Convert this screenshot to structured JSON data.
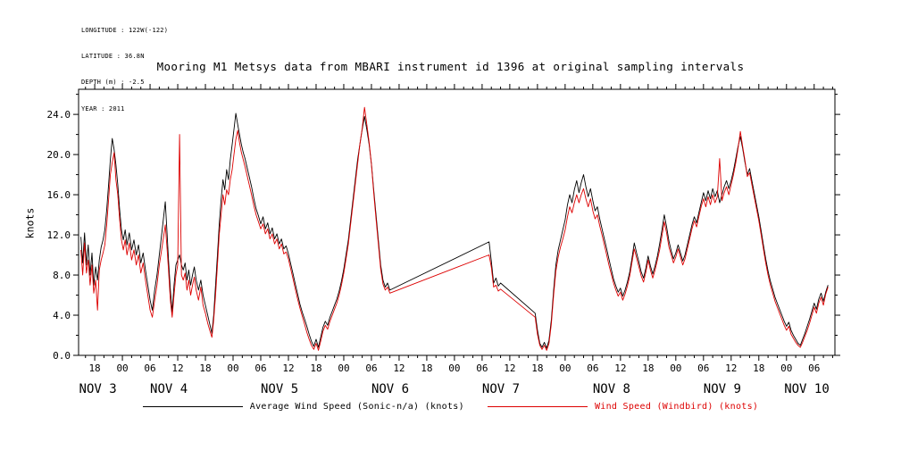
{
  "meta": {
    "lines": [
      "LONGITUDE : 122W(-122)",
      "LATITUDE : 36.8N",
      "DEPTH (m) : -2.5",
      "YEAR : 2011"
    ]
  },
  "chart_data": {
    "type": "line",
    "title": "Mooring M1 Metsys data from MBARI instrument id 1396 at original sampling intervals",
    "ylabel": "knots",
    "grid": false,
    "legend_position": "bottom",
    "x_axis_description": "time, hours since 2011-11-03 00:00; labeled every 6 h with hour-of-day, day labels NOV 3 - NOV 10",
    "xlim": [
      14.5,
      178.5
    ],
    "ylim": [
      0,
      26.5
    ],
    "yticks": [
      {
        "v": 0,
        "label": "0.0"
      },
      {
        "v": 4,
        "label": "4.0"
      },
      {
        "v": 8,
        "label": "8.0"
      },
      {
        "v": 12,
        "label": "12.0"
      },
      {
        "v": 16,
        "label": "16.0"
      },
      {
        "v": 20,
        "label": "20.0"
      },
      {
        "v": 24,
        "label": "24.0"
      }
    ],
    "y_minor_step": 2,
    "xticks": {
      "start_hour": 18,
      "step_hours": 6,
      "labels": [
        "18",
        "00",
        "06",
        "12",
        "18",
        "00",
        "06",
        "12",
        "18",
        "00",
        "06",
        "12",
        "18",
        "00",
        "06",
        "12",
        "18",
        "00",
        "06",
        "12",
        "18",
        "00",
        "06",
        "12",
        "18",
        "00",
        "06"
      ]
    },
    "x_minor_step_hours": 2,
    "day_labels": [
      {
        "label": "NOV 3",
        "t": 14.6
      },
      {
        "label": "NOV 4",
        "t": 30
      },
      {
        "label": "NOV 5",
        "t": 54
      },
      {
        "label": "NOV 6",
        "t": 78
      },
      {
        "label": "NOV 7",
        "t": 102
      },
      {
        "label": "NOV 8",
        "t": 126
      },
      {
        "label": "NOV 9",
        "t": 150
      },
      {
        "label": "NOV 10",
        "t": 167.5
      }
    ],
    "legend": [
      {
        "label": "Average Wind Speed (Sonic-n/a) (knots)",
        "color": "#000000"
      },
      {
        "label": "Wind Speed (Windbird) (knots)",
        "color": "#dd0000"
      }
    ],
    "series": [
      {
        "name": "Average Wind Speed (Sonic-n/a) (knots)",
        "color": "#000000",
        "value_index": 1
      },
      {
        "name": "Wind Speed (Windbird) (knots)",
        "color": "#dd0000",
        "value_index": 2
      }
    ],
    "points": [
      [
        15.0,
        11.8,
        10.5
      ],
      [
        15.4,
        9.2,
        8.0
      ],
      [
        15.8,
        12.2,
        11.2
      ],
      [
        16.2,
        9.0,
        8.2
      ],
      [
        16.6,
        11.0,
        9.5
      ],
      [
        17.0,
        8.0,
        7.0
      ],
      [
        17.4,
        10.2,
        9.0
      ],
      [
        17.8,
        7.0,
        6.2
      ],
      [
        18.2,
        8.8,
        7.5
      ],
      [
        18.6,
        7.5,
        4.5
      ],
      [
        19.0,
        9.5,
        8.5
      ],
      [
        19.4,
        10.8,
        9.5
      ],
      [
        19.8,
        11.5,
        10.2
      ],
      [
        20.2,
        12.5,
        11.0
      ],
      [
        20.6,
        14.5,
        13.0
      ],
      [
        21.0,
        17.0,
        15.5
      ],
      [
        21.4,
        19.5,
        18.0
      ],
      [
        21.8,
        21.6,
        19.2
      ],
      [
        22.2,
        20.5,
        20.2
      ],
      [
        22.6,
        19.0,
        17.5
      ],
      [
        23.0,
        17.0,
        16.0
      ],
      [
        23.4,
        14.5,
        13.5
      ],
      [
        23.8,
        12.5,
        11.5
      ],
      [
        24.2,
        11.5,
        10.5
      ],
      [
        24.6,
        12.5,
        11.5
      ],
      [
        25.0,
        11.0,
        10.0
      ],
      [
        25.5,
        12.2,
        11.2
      ],
      [
        26.0,
        10.5,
        9.5
      ],
      [
        26.5,
        11.5,
        10.5
      ],
      [
        27.0,
        10.0,
        9.0
      ],
      [
        27.5,
        11.0,
        10.0
      ],
      [
        28.0,
        9.2,
        8.2
      ],
      [
        28.5,
        10.2,
        9.2
      ],
      [
        29.0,
        8.5,
        7.5
      ],
      [
        29.5,
        7.0,
        6.0
      ],
      [
        30.0,
        5.5,
        4.5
      ],
      [
        30.5,
        4.5,
        3.8
      ],
      [
        31.0,
        6.5,
        5.5
      ],
      [
        31.5,
        8.0,
        7.0
      ],
      [
        32.0,
        10.0,
        9.0
      ],
      [
        32.5,
        12.0,
        10.5
      ],
      [
        33.0,
        14.0,
        12.0
      ],
      [
        33.3,
        15.3,
        13.0
      ],
      [
        33.7,
        12.0,
        10.5
      ],
      [
        34.0,
        9.5,
        8.5
      ],
      [
        34.4,
        6.5,
        5.5
      ],
      [
        34.8,
        4.3,
        3.8
      ],
      [
        35.2,
        7.0,
        6.0
      ],
      [
        35.6,
        9.0,
        8.0
      ],
      [
        36.0,
        9.5,
        9.0
      ],
      [
        36.4,
        10.0,
        22.0
      ],
      [
        36.8,
        9.0,
        8.0
      ],
      [
        37.2,
        8.5,
        7.5
      ],
      [
        37.6,
        9.2,
        8.2
      ],
      [
        38.0,
        7.5,
        6.5
      ],
      [
        38.4,
        8.5,
        7.5
      ],
      [
        38.8,
        7.0,
        6.0
      ],
      [
        39.2,
        8.0,
        7.0
      ],
      [
        39.6,
        8.8,
        7.8
      ],
      [
        40.0,
        7.5,
        6.5
      ],
      [
        40.5,
        6.5,
        5.5
      ],
      [
        41.0,
        7.5,
        6.8
      ],
      [
        41.5,
        6.0,
        5.0
      ],
      [
        42.0,
        5.0,
        4.2
      ],
      [
        42.5,
        4.0,
        3.2
      ],
      [
        43.0,
        3.0,
        2.4
      ],
      [
        43.4,
        2.2,
        1.8
      ],
      [
        43.8,
        4.0,
        3.5
      ],
      [
        44.2,
        7.0,
        6.0
      ],
      [
        44.6,
        10.0,
        9.0
      ],
      [
        45.0,
        13.0,
        12.0
      ],
      [
        45.4,
        15.5,
        14.0
      ],
      [
        45.8,
        17.5,
        16.0
      ],
      [
        46.2,
        16.5,
        15.0
      ],
      [
        46.6,
        18.5,
        16.5
      ],
      [
        47.0,
        17.5,
        16.0
      ],
      [
        47.4,
        19.5,
        17.5
      ],
      [
        47.8,
        21.0,
        18.5
      ],
      [
        48.2,
        22.5,
        20.0
      ],
      [
        48.6,
        24.1,
        21.5
      ],
      [
        49.0,
        23.0,
        22.4
      ],
      [
        49.4,
        22.0,
        21.2
      ],
      [
        49.8,
        21.0,
        20.2
      ],
      [
        50.2,
        20.2,
        19.5
      ],
      [
        50.6,
        19.6,
        18.8
      ],
      [
        51.0,
        18.8,
        18.0
      ],
      [
        51.5,
        17.8,
        17.0
      ],
      [
        52.0,
        16.8,
        16.0
      ],
      [
        52.5,
        15.6,
        14.9
      ],
      [
        53.0,
        14.6,
        14.0
      ],
      [
        53.5,
        13.9,
        13.3
      ],
      [
        54.0,
        13.1,
        12.6
      ],
      [
        54.5,
        13.8,
        13.1
      ],
      [
        55.0,
        12.6,
        12.1
      ],
      [
        55.5,
        13.2,
        12.6
      ],
      [
        56.0,
        12.1,
        11.6
      ],
      [
        56.5,
        12.7,
        12.1
      ],
      [
        57.0,
        11.6,
        11.1
      ],
      [
        57.5,
        12.1,
        11.6
      ],
      [
        58.0,
        11.1,
        10.6
      ],
      [
        58.5,
        11.6,
        11.1
      ],
      [
        59.0,
        10.6,
        10.1
      ],
      [
        59.5,
        10.9,
        10.3
      ],
      [
        60.0,
        10.1,
        9.6
      ],
      [
        60.5,
        9.1,
        8.6
      ],
      [
        61.0,
        8.1,
        7.6
      ],
      [
        61.5,
        7.1,
        6.6
      ],
      [
        62.0,
        6.1,
        5.6
      ],
      [
        62.5,
        5.1,
        4.7
      ],
      [
        63.0,
        4.3,
        3.9
      ],
      [
        63.5,
        3.6,
        3.1
      ],
      [
        64.0,
        2.9,
        2.3
      ],
      [
        64.5,
        2.1,
        1.6
      ],
      [
        65.0,
        1.4,
        1.0
      ],
      [
        65.5,
        0.9,
        0.6
      ],
      [
        66.0,
        1.6,
        1.2
      ],
      [
        66.5,
        0.8,
        0.5
      ],
      [
        67.0,
        1.8,
        1.4
      ],
      [
        67.5,
        2.8,
        2.4
      ],
      [
        68.0,
        3.4,
        3.0
      ],
      [
        68.5,
        3.0,
        2.6
      ],
      [
        69.0,
        3.8,
        3.4
      ],
      [
        69.5,
        4.4,
        4.0
      ],
      [
        70.0,
        5.0,
        4.6
      ],
      [
        70.5,
        5.6,
        5.2
      ],
      [
        71.0,
        6.4,
        6.0
      ],
      [
        71.5,
        7.4,
        7.0
      ],
      [
        72.0,
        8.6,
        8.2
      ],
      [
        72.5,
        10.0,
        9.6
      ],
      [
        73.0,
        11.5,
        11.1
      ],
      [
        73.5,
        13.5,
        13.1
      ],
      [
        74.0,
        15.5,
        15.1
      ],
      [
        74.5,
        17.5,
        17.1
      ],
      [
        75.0,
        19.5,
        19.1
      ],
      [
        75.5,
        21.0,
        21.0
      ],
      [
        76.0,
        22.5,
        22.6
      ],
      [
        76.5,
        23.8,
        24.7
      ],
      [
        77.0,
        22.5,
        23.0
      ],
      [
        77.5,
        21.0,
        21.2
      ],
      [
        78.0,
        19.0,
        19.0
      ],
      [
        78.5,
        16.5,
        16.2
      ],
      [
        79.0,
        14.0,
        13.6
      ],
      [
        79.5,
        11.5,
        11.1
      ],
      [
        80.0,
        9.0,
        8.6
      ],
      [
        80.5,
        7.5,
        7.1
      ],
      [
        81.0,
        6.8,
        6.5
      ],
      [
        81.5,
        7.2,
        6.8
      ],
      [
        82.0,
        6.5,
        6.2
      ],
      [
        103.5,
        11.3,
        10.0
      ],
      [
        104.0,
        9.4,
        8.8
      ],
      [
        104.5,
        7.2,
        6.8
      ],
      [
        105.0,
        7.7,
        7.0
      ],
      [
        105.5,
        6.9,
        6.4
      ],
      [
        106.0,
        7.2,
        6.6
      ],
      [
        113.5,
        4.2,
        3.8
      ],
      [
        114.0,
        2.5,
        2.1
      ],
      [
        114.5,
        1.2,
        1.0
      ],
      [
        115.0,
        0.8,
        0.6
      ],
      [
        115.5,
        1.3,
        1.0
      ],
      [
        116.0,
        0.7,
        0.5
      ],
      [
        116.5,
        1.5,
        1.2
      ],
      [
        117.0,
        3.5,
        3.1
      ],
      [
        117.5,
        6.5,
        6.0
      ],
      [
        118.0,
        9.0,
        8.4
      ],
      [
        118.5,
        10.5,
        9.8
      ],
      [
        119.0,
        11.5,
        10.8
      ],
      [
        119.5,
        12.5,
        11.6
      ],
      [
        120.0,
        13.5,
        12.5
      ],
      [
        120.5,
        15.0,
        13.8
      ],
      [
        121.0,
        16.0,
        14.8
      ],
      [
        121.5,
        15.2,
        14.2
      ],
      [
        122.0,
        16.5,
        15.2
      ],
      [
        122.5,
        17.4,
        16.0
      ],
      [
        123.0,
        16.2,
        15.2
      ],
      [
        123.5,
        17.2,
        16.0
      ],
      [
        124.0,
        18.0,
        16.6
      ],
      [
        124.5,
        16.8,
        15.6
      ],
      [
        125.0,
        15.8,
        14.8
      ],
      [
        125.5,
        16.6,
        15.6
      ],
      [
        126.0,
        15.4,
        14.4
      ],
      [
        126.5,
        14.4,
        13.6
      ],
      [
        127.0,
        14.8,
        14.0
      ],
      [
        127.5,
        13.6,
        12.9
      ],
      [
        128.0,
        12.6,
        12.0
      ],
      [
        128.5,
        11.6,
        11.0
      ],
      [
        129.0,
        10.6,
        10.0
      ],
      [
        129.5,
        9.6,
        9.0
      ],
      [
        130.0,
        8.6,
        8.1
      ],
      [
        130.5,
        7.6,
        7.2
      ],
      [
        131.0,
        6.9,
        6.5
      ],
      [
        131.5,
        6.3,
        5.9
      ],
      [
        132.0,
        6.7,
        6.3
      ],
      [
        132.5,
        5.9,
        5.5
      ],
      [
        133.0,
        6.5,
        6.1
      ],
      [
        133.5,
        7.3,
        6.9
      ],
      [
        134.0,
        8.3,
        7.9
      ],
      [
        134.5,
        9.7,
        9.3
      ],
      [
        135.0,
        11.2,
        10.6
      ],
      [
        135.5,
        10.2,
        9.7
      ],
      [
        136.0,
        9.3,
        8.8
      ],
      [
        136.5,
        8.3,
        7.9
      ],
      [
        137.0,
        7.7,
        7.3
      ],
      [
        137.5,
        8.7,
        8.3
      ],
      [
        138.0,
        9.9,
        9.5
      ],
      [
        138.5,
        8.9,
        8.5
      ],
      [
        139.0,
        8.1,
        7.7
      ],
      [
        139.5,
        8.9,
        8.5
      ],
      [
        140.0,
        9.9,
        9.5
      ],
      [
        140.5,
        11.1,
        10.5
      ],
      [
        141.0,
        12.5,
        11.9
      ],
      [
        141.5,
        14.0,
        13.3
      ],
      [
        142.0,
        12.8,
        12.2
      ],
      [
        142.5,
        11.4,
        10.8
      ],
      [
        143.0,
        10.4,
        10.0
      ],
      [
        143.5,
        9.6,
        9.2
      ],
      [
        144.0,
        10.2,
        9.8
      ],
      [
        144.5,
        11.0,
        10.6
      ],
      [
        145.0,
        10.2,
        9.8
      ],
      [
        145.5,
        9.4,
        9.0
      ],
      [
        146.0,
        10.0,
        9.6
      ],
      [
        146.5,
        11.0,
        10.6
      ],
      [
        147.0,
        12.0,
        11.6
      ],
      [
        147.5,
        13.0,
        12.6
      ],
      [
        148.0,
        13.8,
        13.4
      ],
      [
        148.5,
        13.2,
        12.8
      ],
      [
        149.0,
        14.2,
        13.8
      ],
      [
        149.5,
        15.2,
        14.8
      ],
      [
        150.0,
        16.2,
        15.6
      ],
      [
        150.5,
        15.4,
        14.8
      ],
      [
        151.0,
        16.4,
        15.8
      ],
      [
        151.5,
        15.6,
        15.0
      ],
      [
        152.0,
        16.6,
        16.0
      ],
      [
        152.5,
        15.8,
        15.2
      ],
      [
        153.0,
        16.4,
        15.8
      ],
      [
        153.5,
        15.2,
        19.6
      ],
      [
        154.0,
        16.0,
        15.4
      ],
      [
        154.5,
        16.8,
        16.2
      ],
      [
        155.0,
        17.4,
        16.8
      ],
      [
        155.5,
        16.6,
        16.0
      ],
      [
        156.0,
        17.4,
        17.0
      ],
      [
        156.5,
        18.4,
        18.0
      ],
      [
        157.0,
        19.6,
        19.2
      ],
      [
        157.5,
        20.8,
        20.6
      ],
      [
        158.0,
        21.8,
        22.3
      ],
      [
        158.5,
        20.6,
        20.8
      ],
      [
        159.0,
        19.2,
        19.4
      ],
      [
        159.5,
        18.0,
        17.8
      ],
      [
        160.0,
        18.6,
        18.2
      ],
      [
        160.5,
        17.4,
        17.0
      ],
      [
        161.0,
        16.2,
        15.8
      ],
      [
        161.5,
        15.0,
        14.6
      ],
      [
        162.0,
        13.8,
        13.4
      ],
      [
        162.5,
        12.4,
        12.0
      ],
      [
        163.0,
        11.0,
        10.6
      ],
      [
        163.5,
        9.6,
        9.2
      ],
      [
        164.0,
        8.4,
        8.0
      ],
      [
        164.5,
        7.4,
        7.0
      ],
      [
        165.0,
        6.6,
        6.2
      ],
      [
        165.5,
        5.8,
        5.4
      ],
      [
        166.0,
        5.2,
        4.8
      ],
      [
        166.5,
        4.6,
        4.2
      ],
      [
        167.0,
        4.0,
        3.6
      ],
      [
        167.5,
        3.4,
        3.0
      ],
      [
        168.0,
        2.9,
        2.5
      ],
      [
        168.5,
        3.3,
        2.9
      ],
      [
        169.0,
        2.5,
        2.1
      ],
      [
        169.5,
        2.0,
        1.7
      ],
      [
        170.0,
        1.6,
        1.3
      ],
      [
        170.5,
        1.2,
        1.0
      ],
      [
        171.0,
        1.0,
        0.8
      ],
      [
        171.5,
        1.6,
        1.3
      ],
      [
        172.0,
        2.2,
        1.9
      ],
      [
        172.5,
        2.9,
        2.5
      ],
      [
        173.0,
        3.6,
        3.2
      ],
      [
        173.5,
        4.4,
        4.0
      ],
      [
        174.0,
        5.2,
        4.8
      ],
      [
        174.5,
        4.6,
        4.2
      ],
      [
        175.0,
        5.6,
        5.2
      ],
      [
        175.5,
        6.2,
        5.8
      ],
      [
        176.0,
        5.4,
        5.0
      ],
      [
        176.5,
        6.3,
        6.1
      ],
      [
        177.0,
        7.0,
        6.8
      ]
    ]
  }
}
